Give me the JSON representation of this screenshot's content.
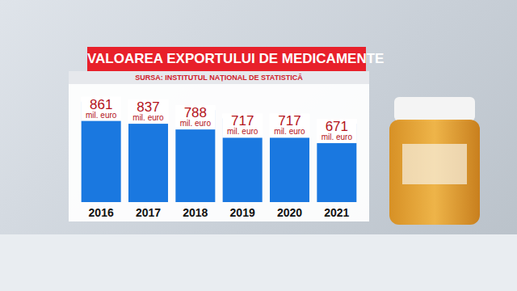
{
  "chart_data": {
    "type": "bar",
    "title": "VALOAREA EXPORTULUI DE MEDICAMENTE",
    "subtitle": "SURSA: INSTITUTUL NAȚIONAL DE STATISTICĂ",
    "categories": [
      "2016",
      "2017",
      "2018",
      "2019",
      "2020",
      "2021"
    ],
    "values": [
      861,
      837,
      788,
      717,
      717,
      671
    ],
    "value_labels": [
      "861 mil. euro",
      "837 mil. euro",
      "788 mil. euro",
      "717 mil. euro",
      "717 mil. euro",
      "671 mil. euro"
    ],
    "color": "#1a78e0",
    "ylim": [
      0,
      900
    ],
    "data_labels": true,
    "tick_labels": "x",
    "grid": false
  }
}
